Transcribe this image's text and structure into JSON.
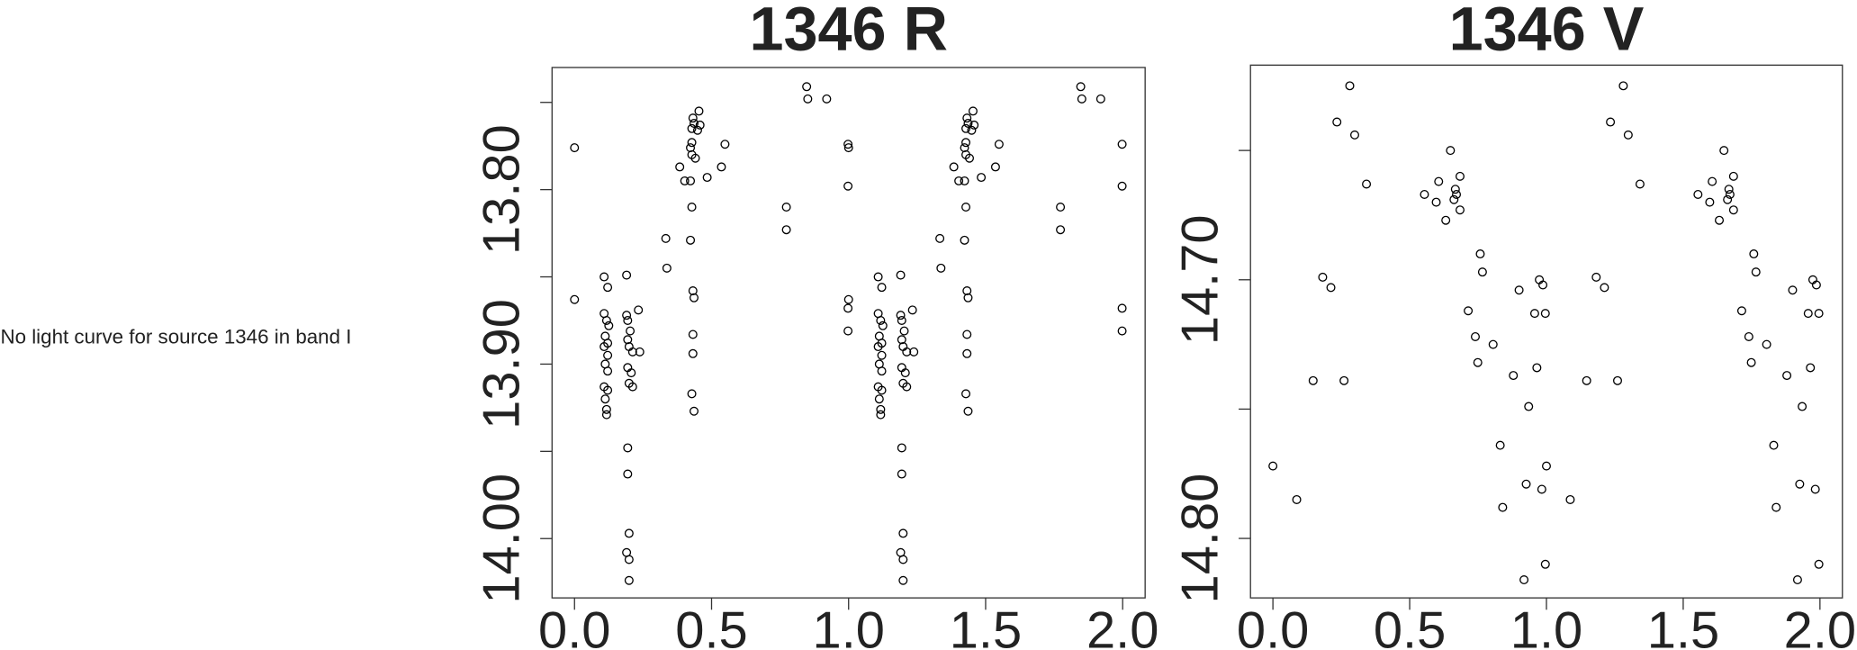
{
  "message": "No light curve for source 1346 in band I",
  "chart_data": [
    {
      "type": "scatter",
      "title": "1346 R",
      "xlim": [
        -0.082,
        2.082
      ],
      "ylim": [
        14.034,
        13.73
      ],
      "xticks": [
        {
          "value": 0,
          "label": "0.0"
        },
        {
          "value": 0.5,
          "label": "0.5"
        },
        {
          "value": 1,
          "label": "1.0"
        },
        {
          "value": 1.5,
          "label": "1.5"
        },
        {
          "value": 2,
          "label": "2.0"
        }
      ],
      "yticks": [
        {
          "value": 13.8,
          "label": "13.80"
        },
        {
          "value": 13.9,
          "label": "13.90"
        },
        {
          "value": 14.0,
          "label": "14.00"
        }
      ],
      "yminorticks": [
        13.75,
        13.85,
        13.95
      ],
      "color": "#000000",
      "x": [
        0.0,
        0.0,
        0.108,
        0.121,
        0.108,
        0.117,
        0.125,
        0.112,
        0.121,
        0.108,
        0.121,
        0.112,
        0.121,
        0.108,
        0.121,
        0.112,
        0.117,
        0.117,
        0.19,
        0.19,
        0.194,
        0.203,
        0.194,
        0.199,
        0.212,
        0.194,
        0.207,
        0.199,
        0.212,
        0.194,
        0.194,
        0.199,
        0.19,
        0.199,
        0.199,
        0.233,
        0.238,
        0.333,
        0.337,
        0.384,
        0.402,
        0.423,
        0.423,
        0.428,
        0.428,
        0.428,
        0.432,
        0.436,
        0.454,
        0.449,
        0.458,
        0.441,
        0.428,
        0.423,
        0.432,
        0.436,
        0.432,
        0.432,
        0.428,
        0.436,
        0.484,
        0.536,
        0.549,
        0.773,
        0.773,
        0.847,
        0.851,
        0.92,
        0.998,
        0.998,
        0.998,
        0.998,
        1.0,
        1.0,
        1.108,
        1.121,
        1.108,
        1.117,
        1.125,
        1.112,
        1.121,
        1.108,
        1.121,
        1.112,
        1.121,
        1.108,
        1.121,
        1.112,
        1.117,
        1.117,
        1.19,
        1.19,
        1.194,
        1.203,
        1.194,
        1.199,
        1.212,
        1.194,
        1.207,
        1.199,
        1.212,
        1.194,
        1.194,
        1.199,
        1.19,
        1.199,
        1.199,
        1.233,
        1.238,
        1.333,
        1.337,
        1.384,
        1.402,
        1.423,
        1.423,
        1.428,
        1.428,
        1.428,
        1.432,
        1.436,
        1.454,
        1.449,
        1.458,
        1.441,
        1.428,
        1.423,
        1.432,
        1.436,
        1.432,
        1.432,
        1.428,
        1.436,
        1.484,
        1.536,
        1.549,
        1.773,
        1.773,
        1.847,
        1.851,
        1.92,
        1.998,
        1.998,
        1.998,
        1.998
      ],
      "y": [
        13.776,
        13.863,
        13.85,
        13.856,
        13.871,
        13.875,
        13.878,
        13.884,
        13.888,
        13.89,
        13.895,
        13.9,
        13.904,
        13.913,
        13.915,
        13.92,
        13.926,
        13.929,
        13.849,
        13.872,
        13.875,
        13.881,
        13.886,
        13.89,
        13.893,
        13.902,
        13.905,
        13.911,
        13.913,
        13.948,
        13.963,
        13.997,
        14.008,
        14.012,
        14.024,
        13.869,
        13.893,
        13.828,
        13.845,
        13.787,
        13.795,
        13.776,
        13.795,
        13.78,
        13.773,
        13.765,
        13.759,
        13.762,
        13.755,
        13.766,
        13.763,
        13.782,
        13.81,
        13.829,
        13.858,
        13.862,
        13.883,
        13.894,
        13.917,
        13.927,
        13.793,
        13.787,
        13.774,
        13.81,
        13.823,
        13.741,
        13.748,
        13.748,
        13.774,
        13.798,
        13.868,
        13.881,
        13.776,
        13.863,
        13.85,
        13.856,
        13.871,
        13.875,
        13.878,
        13.884,
        13.888,
        13.89,
        13.895,
        13.9,
        13.904,
        13.913,
        13.915,
        13.92,
        13.926,
        13.929,
        13.849,
        13.872,
        13.875,
        13.881,
        13.886,
        13.89,
        13.893,
        13.902,
        13.905,
        13.911,
        13.913,
        13.948,
        13.963,
        13.997,
        14.008,
        14.012,
        14.024,
        13.869,
        13.893,
        13.828,
        13.845,
        13.787,
        13.795,
        13.776,
        13.795,
        13.78,
        13.773,
        13.765,
        13.759,
        13.762,
        13.755,
        13.766,
        13.763,
        13.782,
        13.81,
        13.829,
        13.858,
        13.862,
        13.883,
        13.894,
        13.917,
        13.927,
        13.793,
        13.787,
        13.774,
        13.81,
        13.823,
        13.741,
        13.748,
        13.748,
        13.774,
        13.798,
        13.868,
        13.881
      ]
    },
    {
      "type": "scatter",
      "title": "1346 V",
      "xlim": [
        -0.082,
        2.082
      ],
      "ylim": [
        14.823,
        14.617
      ],
      "xticks": [
        {
          "value": 0,
          "label": "0.0"
        },
        {
          "value": 0.5,
          "label": "0.5"
        },
        {
          "value": 1,
          "label": "1.0"
        },
        {
          "value": 1.5,
          "label": "1.5"
        },
        {
          "value": 2,
          "label": "2.0"
        }
      ],
      "yticks": [
        {
          "value": 14.7,
          "label": "14.70"
        },
        {
          "value": 14.8,
          "label": "14.80"
        }
      ],
      "yminorticks": [
        14.65,
        14.75
      ],
      "color": "#000000",
      "x": [
        0.0,
        0.087,
        0.147,
        0.182,
        0.212,
        0.234,
        0.26,
        0.281,
        0.299,
        0.342,
        0.554,
        0.597,
        0.606,
        0.632,
        0.649,
        0.662,
        0.667,
        0.671,
        0.684,
        0.684,
        0.714,
        0.74,
        0.749,
        0.758,
        0.766,
        0.805,
        0.831,
        0.84,
        0.879,
        0.9,
        0.918,
        0.926,
        0.935,
        0.957,
        0.965,
        0.974,
        0.983,
        0.987,
        0.996,
        0.996,
        1.0,
        1.087,
        1.147,
        1.182,
        1.212,
        1.234,
        1.26,
        1.281,
        1.299,
        1.342,
        1.554,
        1.597,
        1.606,
        1.632,
        1.649,
        1.662,
        1.667,
        1.671,
        1.684,
        1.684,
        1.714,
        1.74,
        1.749,
        1.758,
        1.766,
        1.805,
        1.831,
        1.84,
        1.879,
        1.9,
        1.918,
        1.926,
        1.935,
        1.957,
        1.965,
        1.974,
        1.983,
        1.987,
        1.996,
        1.996
      ],
      "y": [
        14.772,
        14.785,
        14.739,
        14.699,
        14.703,
        14.639,
        14.739,
        14.625,
        14.644,
        14.663,
        14.667,
        14.67,
        14.662,
        14.677,
        14.65,
        14.669,
        14.665,
        14.667,
        14.66,
        14.673,
        14.712,
        14.722,
        14.732,
        14.69,
        14.697,
        14.725,
        14.764,
        14.788,
        14.737,
        14.704,
        14.816,
        14.779,
        14.749,
        14.713,
        14.734,
        14.7,
        14.781,
        14.702,
        14.713,
        14.81,
        14.772,
        14.785,
        14.739,
        14.699,
        14.703,
        14.639,
        14.739,
        14.625,
        14.644,
        14.663,
        14.667,
        14.67,
        14.662,
        14.677,
        14.65,
        14.669,
        14.665,
        14.667,
        14.66,
        14.673,
        14.712,
        14.722,
        14.732,
        14.69,
        14.697,
        14.725,
        14.764,
        14.788,
        14.737,
        14.704,
        14.816,
        14.779,
        14.749,
        14.713,
        14.734,
        14.7,
        14.781,
        14.702,
        14.713,
        14.81
      ]
    }
  ]
}
